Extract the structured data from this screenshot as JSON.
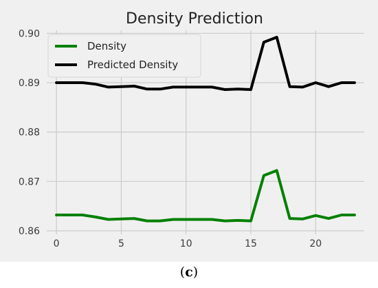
{
  "chart_data": {
    "type": "line",
    "title": "Density  Prediction",
    "xlabel": "",
    "ylabel": "",
    "x": [
      0,
      1,
      2,
      3,
      4,
      5,
      6,
      7,
      8,
      9,
      10,
      11,
      12,
      13,
      14,
      15,
      16,
      17,
      18,
      19,
      20,
      21,
      22,
      23
    ],
    "series": [
      {
        "name": "Density",
        "color": "#008000",
        "values": [
          0.8632,
          0.8632,
          0.8632,
          0.8628,
          0.8623,
          0.8624,
          0.8625,
          0.862,
          0.862,
          0.8623,
          0.8623,
          0.8623,
          0.8623,
          0.862,
          0.8621,
          0.862,
          0.8712,
          0.8722,
          0.8625,
          0.8624,
          0.8631,
          0.8625,
          0.8632,
          0.8632
        ]
      },
      {
        "name": "Predicted Density",
        "color": "#000000",
        "values": [
          0.89,
          0.89,
          0.89,
          0.8897,
          0.8891,
          0.8892,
          0.8893,
          0.8887,
          0.8887,
          0.8891,
          0.8891,
          0.8891,
          0.8891,
          0.8886,
          0.8887,
          0.8886,
          0.8982,
          0.8992,
          0.8892,
          0.8891,
          0.89,
          0.8892,
          0.89,
          0.89
        ]
      }
    ],
    "xlim": [
      -0.75,
      23.75
    ],
    "ylim": [
      0.8593,
      0.9006
    ],
    "xticks": [
      0,
      5,
      10,
      15,
      20
    ],
    "xtick_labels": [
      "0",
      "5",
      "10",
      "15",
      "20"
    ],
    "yticks": [
      0.86,
      0.87,
      0.88,
      0.89,
      0.9
    ],
    "ytick_labels": [
      "0.86",
      "0.87",
      "0.88",
      "0.89",
      "0.90"
    ],
    "grid": true,
    "legend": "top-left",
    "style": "fivethirtyeight",
    "background": "#f0f0f0",
    "grid_color": "#cbcbcb"
  },
  "caption": {
    "open": "(",
    "letter": "c",
    "close": ")"
  }
}
